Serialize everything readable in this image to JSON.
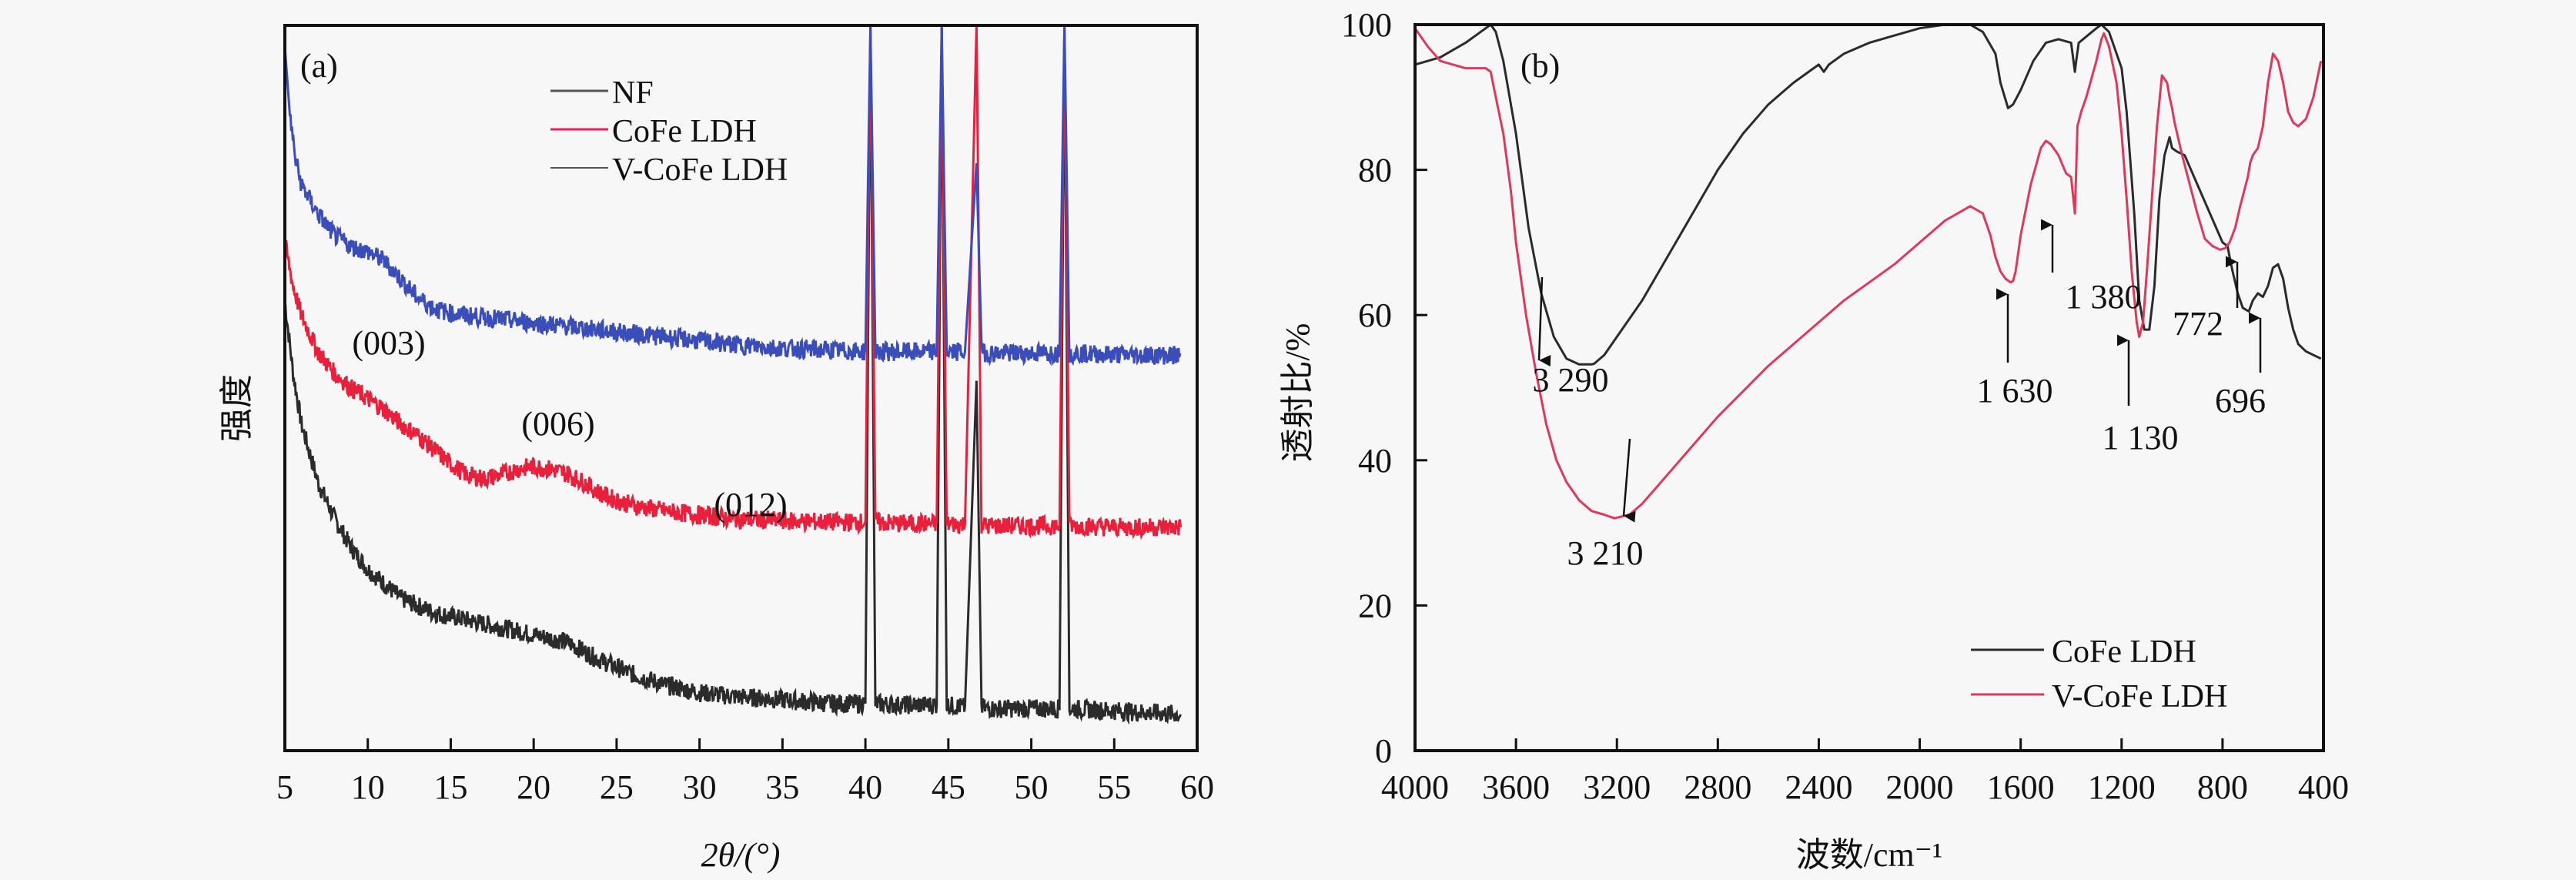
{
  "chart_data": [
    {
      "type": "line",
      "panel_label": "(a)",
      "title": "",
      "xlabel": "2θ/(°)",
      "ylabel": "强度",
      "xlim": [
        5,
        60
      ],
      "ylim": [
        0,
        100
      ],
      "xticks": [
        5,
        10,
        15,
        20,
        25,
        30,
        35,
        40,
        45,
        50,
        55,
        60
      ],
      "y_ticks_shown": false,
      "grid": false,
      "legend": {
        "placement": "top-center",
        "entries": [
          "NF",
          "CoFe LDH",
          "V-CoFe LDH"
        ]
      },
      "series": [
        {
          "name": "NF",
          "color": "#2b2b2b",
          "baseline_offset": 0,
          "x": [
            5,
            5.5,
            6,
            7,
            8,
            9,
            10,
            12,
            14,
            16,
            18,
            20,
            22,
            24,
            26,
            28,
            30,
            32,
            35,
            38,
            40,
            40.3,
            40.6,
            42,
            44.3,
            44.6,
            44.9,
            46,
            46.7,
            47,
            47.3,
            50,
            51.7,
            52,
            52.3,
            55,
            59
          ],
          "y": [
            62,
            52,
            45,
            37,
            32,
            28,
            25,
            21,
            19,
            18,
            17,
            16,
            15,
            12.5,
            10.5,
            9,
            8,
            7.5,
            7,
            6.5,
            6.5,
            100,
            6.5,
            6.3,
            6.3,
            100,
            6.3,
            6,
            51,
            6,
            5.8,
            5.8,
            5.8,
            100,
            5.8,
            5.5,
            5
          ]
        },
        {
          "name": "CoFe LDH",
          "color": "#e8203c",
          "baseline_offset": 0,
          "x": [
            5,
            5.5,
            6,
            7,
            8,
            9,
            10,
            11,
            12,
            13,
            14,
            15,
            16,
            17,
            18,
            19,
            20,
            21,
            22,
            23,
            24,
            25,
            26,
            28,
            30,
            32,
            35,
            38,
            40,
            40.3,
            40.6,
            42,
            44.3,
            44.6,
            44.9,
            46,
            46.7,
            47,
            47.3,
            50,
            51.7,
            52,
            52.3,
            55,
            59
          ],
          "y": [
            70,
            64,
            60,
            55,
            52,
            50,
            48.5,
            47,
            45,
            43.5,
            41.5,
            39.5,
            38,
            37.5,
            38,
            38.8,
            39.2,
            38.8,
            38.2,
            37,
            35.5,
            34.5,
            33.8,
            33,
            32.5,
            32,
            31.7,
            31.5,
            31.5,
            100,
            31.5,
            31.3,
            31.3,
            100,
            31.3,
            31.2,
            100,
            31.2,
            31,
            31,
            31,
            100,
            31,
            30.8,
            30.8
          ]
        },
        {
          "name": "V-CoFe LDH",
          "color": "#3a4db8",
          "baseline_offset": 0,
          "x": [
            5,
            5.3,
            5.6,
            6,
            7,
            8,
            9,
            10,
            11,
            12,
            13,
            14,
            15,
            16,
            18,
            20,
            22,
            24,
            26,
            28,
            30,
            32,
            35,
            38,
            40,
            40.3,
            40.6,
            42,
            44.3,
            44.6,
            44.9,
            46,
            46.7,
            47,
            47.3,
            50,
            51.7,
            52,
            52.3,
            55,
            59
          ],
          "y": [
            97,
            88,
            82,
            78,
            74,
            71,
            69.5,
            68.8,
            67.5,
            65,
            62.5,
            61,
            60.3,
            60,
            59.5,
            59,
            58.5,
            58,
            57.5,
            57,
            56.5,
            56,
            55.5,
            55.2,
            55,
            100,
            55,
            55,
            55,
            100,
            55,
            55,
            81,
            55,
            54.8,
            54.8,
            54.8,
            100,
            54.8,
            54.6,
            54.5
          ]
        }
      ],
      "annotations": [
        {
          "text": "(003)",
          "x": 10.5,
          "y": 62
        },
        {
          "text": "(006)",
          "x": 21,
          "y": 45
        },
        {
          "text": "(012)",
          "x": 34,
          "y": 35
        }
      ]
    },
    {
      "type": "line",
      "panel_label": "(b)",
      "title": "",
      "xlabel": "波数/cm⁻¹",
      "ylabel": "透射比/%",
      "xlim": [
        4000,
        400
      ],
      "ylim": [
        0,
        100
      ],
      "xticks": [
        4000,
        3600,
        3200,
        2800,
        2400,
        2000,
        1600,
        1200,
        800,
        400
      ],
      "yticks": [
        0,
        20,
        40,
        60,
        80,
        100
      ],
      "grid": false,
      "legend": {
        "placement": "bottom-right",
        "entries": [
          "CoFe LDH",
          "V-CoFe LDH"
        ]
      },
      "series": [
        {
          "name": "CoFe LDH",
          "color": "#2b2b2b",
          "x": [
            4000,
            3900,
            3800,
            3720,
            3700,
            3680,
            3650,
            3600,
            3550,
            3500,
            3450,
            3400,
            3350,
            3300,
            3290,
            3250,
            3200,
            3100,
            3000,
            2900,
            2800,
            2700,
            2600,
            2500,
            2400,
            2380,
            2360,
            2300,
            2200,
            2100,
            2000,
            1900,
            1800,
            1750,
            1700,
            1680,
            1650,
            1630,
            1600,
            1550,
            1500,
            1450,
            1400,
            1385,
            1380,
            1370,
            1300,
            1280,
            1250,
            1200,
            1180,
            1150,
            1130,
            1110,
            1090,
            1070,
            1050,
            1030,
            1010,
            1000,
            980,
            950,
            900,
            850,
            800,
            780,
            772,
            760,
            740,
            720,
            696,
            680,
            660,
            640,
            620,
            600,
            580,
            560,
            540,
            520,
            500,
            470,
            440,
            410
          ],
          "y": [
            94.5,
            95.5,
            97.5,
            99.5,
            100,
            99,
            95,
            85,
            72,
            63,
            57,
            54,
            53.2,
            53.2,
            53.3,
            54.5,
            57,
            62,
            68,
            74,
            80,
            85,
            89,
            92,
            94.5,
            93.5,
            94.5,
            96,
            97.5,
            98.5,
            99.5,
            100,
            100,
            99,
            96,
            92,
            88.5,
            89,
            91,
            95,
            97.5,
            98,
            97.5,
            93.5,
            95,
            97.5,
            99.5,
            100,
            99,
            94,
            88,
            74,
            62,
            58,
            58,
            64,
            76,
            82,
            84.5,
            83,
            82.5,
            82,
            78,
            74,
            70,
            69.5,
            68,
            66,
            63,
            61,
            60.5,
            62,
            63,
            62.5,
            64,
            66.5,
            67,
            65,
            61,
            58,
            56,
            55,
            54.5,
            54
          ]
        },
        {
          "name": "V-CoFe LDH",
          "color": "#e0385a",
          "x": [
            4000,
            3950,
            3900,
            3850,
            3800,
            3750,
            3720,
            3700,
            3680,
            3650,
            3620,
            3600,
            3560,
            3520,
            3480,
            3440,
            3400,
            3350,
            3300,
            3250,
            3210,
            3150,
            3100,
            3000,
            2900,
            2800,
            2700,
            2600,
            2500,
            2400,
            2300,
            2200,
            2100,
            2000,
            1900,
            1800,
            1750,
            1720,
            1700,
            1680,
            1660,
            1640,
            1630,
            1620,
            1600,
            1560,
            1520,
            1500,
            1480,
            1450,
            1420,
            1400,
            1385,
            1380,
            1375,
            1360,
            1340,
            1300,
            1280,
            1270,
            1250,
            1220,
            1200,
            1180,
            1160,
            1140,
            1130,
            1115,
            1100,
            1080,
            1060,
            1040,
            1020,
            1010,
            1000,
            990,
            980,
            960,
            930,
            900,
            870,
            840,
            810,
            790,
            772,
            750,
            730,
            700,
            690,
            680,
            660,
            640,
            620,
            600,
            580,
            560,
            540,
            520,
            500,
            470,
            440,
            410
          ],
          "y": [
            99.5,
            97,
            95,
            94.5,
            94,
            94,
            94,
            93.5,
            90,
            85,
            77,
            70,
            60,
            52,
            45,
            40,
            37,
            34.5,
            33,
            32.5,
            32,
            32.5,
            34,
            38,
            42,
            46,
            49.5,
            53,
            56,
            59,
            62,
            64.5,
            67,
            70,
            73,
            75,
            74,
            71,
            68,
            66,
            65,
            64.5,
            64.7,
            66,
            71,
            78,
            83,
            84,
            83.5,
            82,
            79.5,
            79,
            74,
            80,
            86,
            88,
            90,
            95,
            98,
            98.8,
            97,
            92,
            85,
            76,
            66,
            59,
            57,
            59,
            66,
            76,
            86,
            93,
            92,
            90,
            88.5,
            86.5,
            85,
            82,
            78,
            74,
            70.5,
            69.5,
            69,
            69.2,
            70,
            72,
            75,
            79,
            81,
            82,
            83,
            86,
            92,
            96,
            95,
            92,
            88,
            86.5,
            86,
            87,
            90,
            95
          ]
        }
      ],
      "annotations": [
        {
          "text": "3 290",
          "x": 3290,
          "y": 53.3,
          "arrow": "down-to-black"
        },
        {
          "text": "3 210",
          "x": 3210,
          "y": 32,
          "arrow": "down-to-red"
        },
        {
          "text": "1 630",
          "x": 1630,
          "y": 64.5,
          "arrow": "up"
        },
        {
          "text": "1 380",
          "x": 1380,
          "y": 74,
          "arrow": "up"
        },
        {
          "text": "1 130",
          "x": 1130,
          "y": 57,
          "arrow": "up"
        },
        {
          "text": "772",
          "x": 772,
          "y": 69,
          "arrow": "up"
        },
        {
          "text": "696",
          "x": 696,
          "y": 60.5,
          "arrow": "up"
        }
      ]
    }
  ]
}
